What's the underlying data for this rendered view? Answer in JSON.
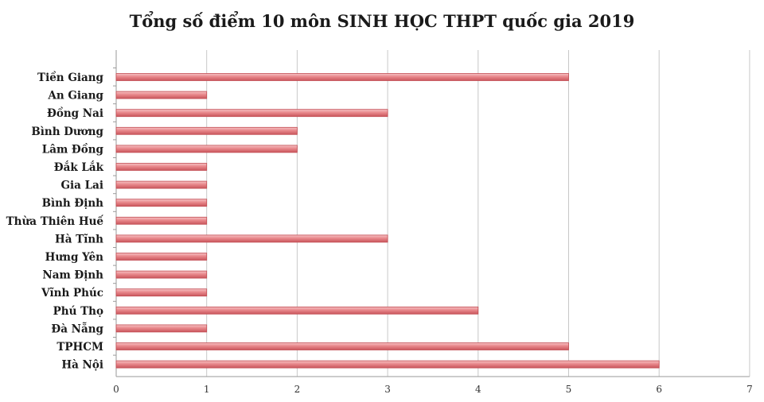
{
  "chart_data": {
    "type": "bar",
    "orientation": "horizontal",
    "title": "Tổng số điểm 10 môn SINH HỌC THPT quốc gia 2019",
    "categories": [
      "Tiền Giang",
      "An Giang",
      "Đồng Nai",
      "Bình Dương",
      "Lâm Đồng",
      "Đắk Lắk",
      "Gia Lai",
      "Bình Định",
      "Thừa Thiên Huế",
      "Hà Tĩnh",
      "Hưng Yên",
      "Nam Định",
      "Vĩnh Phúc",
      "Phú Thọ",
      "Đà Nẵng",
      "TPHCM",
      "Hà Nội"
    ],
    "values": [
      5,
      1,
      3,
      2,
      2,
      1,
      1,
      1,
      1,
      3,
      1,
      1,
      1,
      4,
      1,
      5,
      6
    ],
    "xlim": [
      0,
      7
    ],
    "xticks": [
      "0",
      "1",
      "2",
      "3",
      "4",
      "5",
      "6",
      "7"
    ],
    "grid": "vertical",
    "bar_color": "#e8878b",
    "bar_edge_color": "#c24b52"
  }
}
